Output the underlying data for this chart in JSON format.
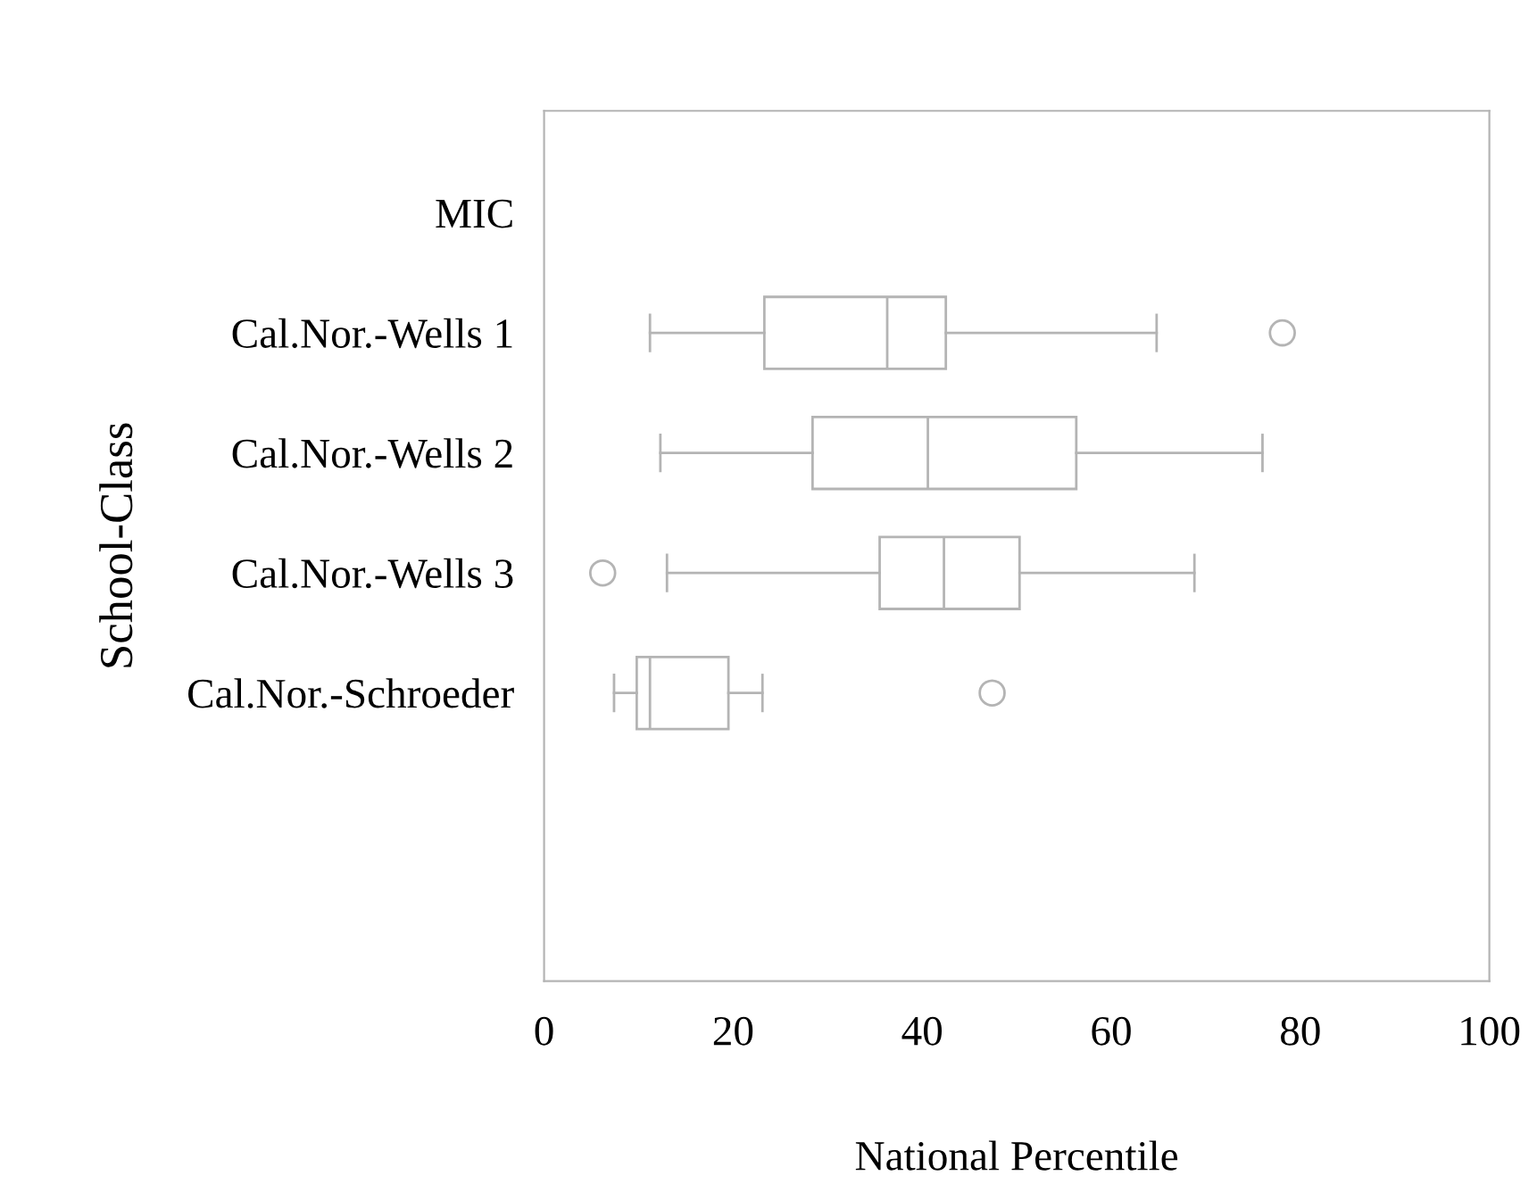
{
  "chart_data": {
    "type": "box",
    "orientation": "horizontal",
    "xlabel": "National Percentile",
    "ylabel": "School-Class",
    "categories": [
      "MIC",
      "Cal.Nor.-Wells 1",
      "Cal.Nor.-Wells 2",
      "Cal.Nor.-Wells 3",
      "Cal.Nor.-Schroeder"
    ],
    "boxes": [
      null,
      {
        "low": 11.2,
        "q1": 23.3,
        "median": 36.3,
        "q3": 42.5,
        "high": 64.8,
        "outliers": [
          78.1
        ]
      },
      {
        "low": 12.3,
        "q1": 28.4,
        "median": 40.6,
        "q3": 56.3,
        "high": 76.0
      },
      {
        "low": 13.0,
        "q1": 35.5,
        "median": 42.3,
        "q3": 50.3,
        "high": 68.8,
        "outliers": [
          6.2
        ]
      },
      {
        "low": 7.4,
        "q1": 9.8,
        "median": 11.2,
        "q3": 19.5,
        "high": 23.1,
        "outliers": [
          47.4
        ]
      }
    ],
    "color": "#b4b4b4",
    "xlim": [
      0,
      100
    ],
    "xticks": [
      0,
      20,
      40,
      60,
      80,
      100
    ],
    "grid": false
  }
}
